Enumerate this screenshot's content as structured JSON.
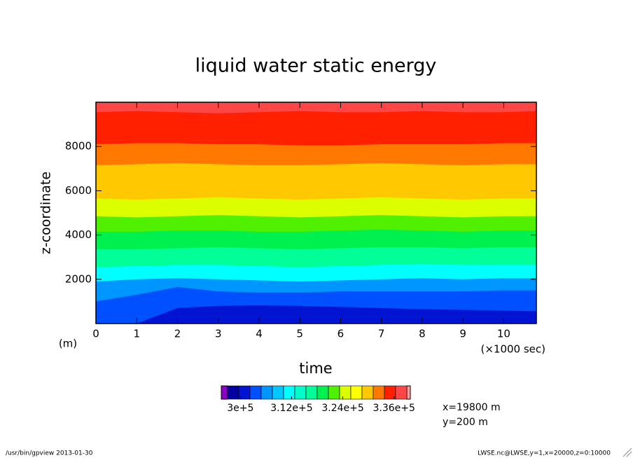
{
  "chart_data": {
    "type": "contour",
    "title": "liquid water static energy",
    "xlabel": "time",
    "xunit": "(×1000 sec)",
    "ylabel": "z-coordinate",
    "yunit": "(m)",
    "x": [
      0,
      1,
      2,
      3,
      4,
      5,
      6,
      7,
      8,
      9,
      10,
      10.8
    ],
    "xlim": [
      0,
      10.8
    ],
    "xticks": [
      0,
      1,
      2,
      3,
      4,
      5,
      6,
      7,
      8,
      9,
      10
    ],
    "ylim": [
      0,
      10000
    ],
    "yticks": [
      2000,
      4000,
      6000,
      8000
    ],
    "bands": [
      {
        "color": "#0014d2",
        "tops": [
          0,
          0,
          700,
          800,
          820,
          800,
          750,
          700,
          650,
          620,
          580,
          560
        ]
      },
      {
        "color": "#0050ff",
        "tops": [
          1000,
          1300,
          1650,
          1450,
          1400,
          1400,
          1450,
          1450,
          1450,
          1450,
          1500,
          1500
        ]
      },
      {
        "color": "#0096ff",
        "tops": [
          1900,
          2000,
          2050,
          2000,
          1950,
          1900,
          1950,
          2000,
          2050,
          2000,
          2050,
          2050
        ]
      },
      {
        "color": "#00ffff",
        "tops": [
          2550,
          2600,
          2650,
          2650,
          2600,
          2550,
          2600,
          2650,
          2700,
          2650,
          2650,
          2650
        ]
      },
      {
        "color": "#00ff96",
        "tops": [
          3350,
          3350,
          3400,
          3450,
          3400,
          3350,
          3400,
          3450,
          3450,
          3400,
          3450,
          3450
        ]
      },
      {
        "color": "#00f050",
        "tops": [
          4150,
          4150,
          4200,
          4200,
          4150,
          4150,
          4200,
          4250,
          4200,
          4150,
          4200,
          4200
        ]
      },
      {
        "color": "#50f000",
        "tops": [
          4850,
          4800,
          4850,
          4900,
          4850,
          4800,
          4850,
          4900,
          4850,
          4800,
          4850,
          4850
        ]
      },
      {
        "color": "#dcff00",
        "tops": [
          5650,
          5600,
          5650,
          5700,
          5650,
          5600,
          5650,
          5700,
          5650,
          5600,
          5650,
          5650
        ]
      },
      {
        "color": "#ffc800",
        "tops": [
          7150,
          7200,
          7250,
          7200,
          7150,
          7150,
          7200,
          7250,
          7200,
          7150,
          7200,
          7200
        ]
      },
      {
        "color": "#ff7800",
        "tops": [
          8100,
          8150,
          8150,
          8100,
          8100,
          8050,
          8050,
          8100,
          8100,
          8100,
          8150,
          8150
        ]
      },
      {
        "color": "#ff2000",
        "tops": [
          9550,
          9600,
          9550,
          9500,
          9550,
          9600,
          9550,
          9550,
          9600,
          9550,
          9550,
          9600
        ]
      },
      {
        "color": "#ff4646",
        "tops": [
          10000,
          10000,
          10000,
          10000,
          10000,
          10000,
          10000,
          10000,
          10000,
          10000,
          10000,
          10000
        ]
      }
    ],
    "colorbar": {
      "lim": [
        297000,
        339000
      ],
      "ticks": [
        {
          "value": 300000,
          "label": "3e+5"
        },
        {
          "value": 312000,
          "label": "3.12e+5"
        },
        {
          "value": 324000,
          "label": "3.24e+5"
        },
        {
          "value": 336000,
          "label": "3.36e+5"
        }
      ],
      "colors": [
        "#0000a0",
        "#0014d2",
        "#0050ff",
        "#0096ff",
        "#00c8ff",
        "#00ffff",
        "#00ffc8",
        "#00ff96",
        "#00f050",
        "#50f000",
        "#dcff00",
        "#ffff00",
        "#ffc800",
        "#ff7800",
        "#ff2000",
        "#ff4646"
      ],
      "under_color": "#8c00c8",
      "over_color": "#ffa0a0"
    },
    "annotations": [
      "x=19800 m",
      "y=200 m"
    ],
    "footer_left": "/usr/bin/gpview  2013-01-30",
    "footer_right": "LWSE.nc@LWSE,y=1,x=20000,z=0:10000"
  }
}
